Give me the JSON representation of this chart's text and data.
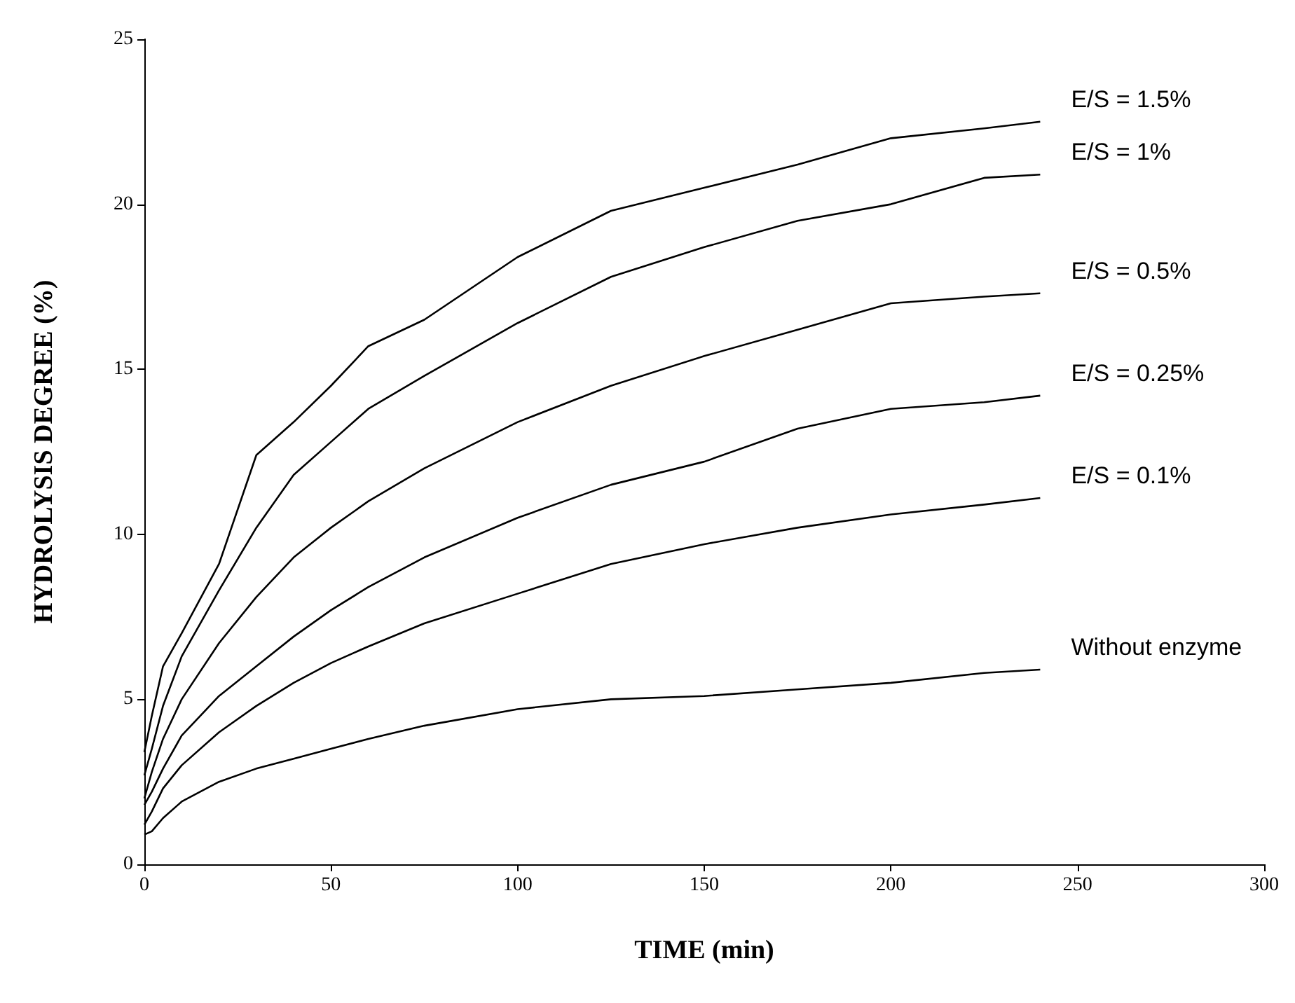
{
  "chart_data": {
    "type": "line",
    "xlabel": "TIME (min)",
    "ylabel": "HYDROLYSIS DEGREE (%)",
    "xlim": [
      0,
      300
    ],
    "xticks": [
      0,
      50,
      100,
      150,
      200,
      250,
      300
    ],
    "ylim": [
      0,
      25
    ],
    "yticks": [
      0,
      5,
      10,
      15,
      20,
      25
    ],
    "grid": false,
    "legend": false,
    "marker": "none",
    "line_style": "solid",
    "x": [
      0,
      2,
      5,
      10,
      20,
      30,
      40,
      50,
      60,
      75,
      100,
      125,
      150,
      175,
      200,
      225,
      240
    ],
    "series": [
      {
        "name": "E/S = 1.5%",
        "color": "#000000",
        "values": [
          3.4,
          4.5,
          6.0,
          7.0,
          9.1,
          12.4,
          13.4,
          14.5,
          15.7,
          16.5,
          18.4,
          19.8,
          20.5,
          21.2,
          22.0,
          22.3,
          22.5
        ]
      },
      {
        "name": "E/S = 1%",
        "color": "#000000",
        "values": [
          2.7,
          3.5,
          4.8,
          6.3,
          8.3,
          10.2,
          11.8,
          12.8,
          13.8,
          14.8,
          16.4,
          17.8,
          18.7,
          19.5,
          20.0,
          20.8,
          20.9
        ]
      },
      {
        "name": "E/S = 0.5%",
        "color": "#000000",
        "values": [
          2.0,
          2.8,
          3.8,
          5.0,
          6.7,
          8.1,
          9.3,
          10.2,
          11.0,
          12.0,
          13.4,
          14.5,
          15.4,
          16.2,
          17.0,
          17.2,
          17.3
        ]
      },
      {
        "name": "E/S = 0.25%",
        "color": "#000000",
        "values": [
          1.8,
          2.2,
          2.9,
          3.9,
          5.1,
          6.0,
          6.9,
          7.7,
          8.4,
          9.3,
          10.5,
          11.5,
          12.2,
          13.2,
          13.8,
          14.0,
          14.2
        ]
      },
      {
        "name": "E/S = 0.1%",
        "color": "#000000",
        "values": [
          1.2,
          1.6,
          2.3,
          3.0,
          4.0,
          4.8,
          5.5,
          6.1,
          6.6,
          7.3,
          8.2,
          9.1,
          9.7,
          10.2,
          10.6,
          10.9,
          11.1
        ]
      },
      {
        "name": "Without enzyme",
        "color": "#000000",
        "values": [
          0.9,
          1.0,
          1.4,
          1.9,
          2.5,
          2.9,
          3.2,
          3.5,
          3.8,
          4.2,
          4.7,
          5.0,
          5.1,
          5.3,
          5.5,
          5.8,
          5.9
        ]
      }
    ]
  }
}
